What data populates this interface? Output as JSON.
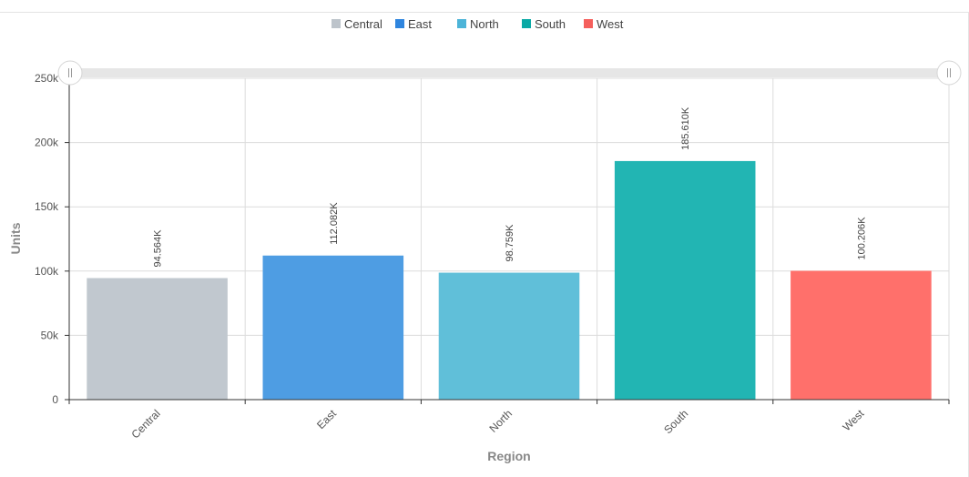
{
  "chart_data": {
    "type": "bar",
    "categories": [
      "Central",
      "East",
      "North",
      "South",
      "West"
    ],
    "values": [
      94564,
      112082,
      98759,
      185610,
      100206
    ],
    "data_labels": [
      "94.564K",
      "112.082K",
      "98.759K",
      "185.610K",
      "100.206K"
    ],
    "colors": [
      "#c1c8cf",
      "#4e9de3",
      "#60bfd9",
      "#22b5b3",
      "#ff706b"
    ],
    "legend": [
      {
        "name": "Central",
        "color": "#bdc4cb"
      },
      {
        "name": "East",
        "color": "#2f85de"
      },
      {
        "name": "North",
        "color": "#4db4d8"
      },
      {
        "name": "South",
        "color": "#0aa9a5"
      },
      {
        "name": "West",
        "color": "#f55f5c"
      }
    ],
    "legend_position": "top",
    "xlabel": "Region",
    "ylabel": "Units",
    "ylim": [
      0,
      250000
    ],
    "yticks": [
      0,
      50000,
      100000,
      150000,
      200000,
      250000
    ],
    "ytick_labels": [
      "0",
      "50k",
      "100k",
      "150k",
      "200k",
      "250k"
    ],
    "grid": true,
    "range_slider": true
  }
}
